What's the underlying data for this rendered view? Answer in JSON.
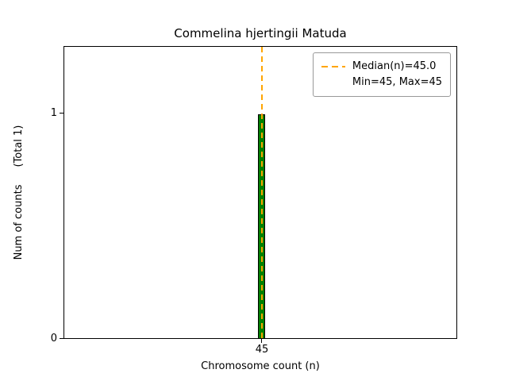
{
  "chart_data": {
    "type": "bar",
    "title": "Commelina hjertingii Matuda",
    "categories": [
      45
    ],
    "values": [
      1
    ],
    "xlabel": "Chromosome count (n)",
    "ylabel": "Num of counts",
    "ylabel_suffix": "(Total 1)",
    "ylim": [
      0,
      1.3
    ],
    "yticks": [
      "0",
      "1"
    ],
    "xticks": [
      "45"
    ],
    "grid": false,
    "bar_color": "#008000",
    "bar_edge_color": "#000000",
    "median_line": {
      "value": 45.0,
      "color": "#ffa500",
      "style": "dashed",
      "orientation": "vertical"
    },
    "legend": {
      "position": "upper right",
      "entries": [
        {
          "label": "Median(n)=45.0",
          "sample": "dashed-orange-line"
        },
        {
          "label": "Min=45, Max=45",
          "sample": "none"
        }
      ]
    }
  }
}
